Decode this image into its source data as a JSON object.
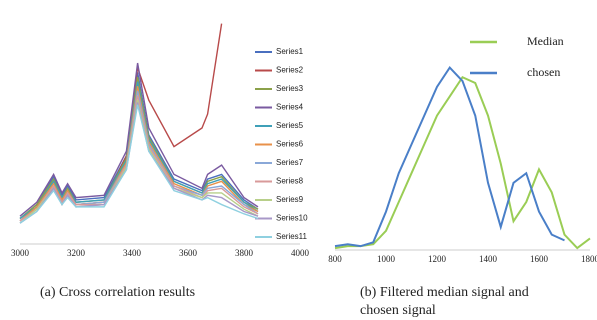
{
  "chart_data": [
    {
      "type": "line",
      "caption": "(a) Cross correlation results",
      "x": [
        3000,
        3060,
        3120,
        3150,
        3170,
        3200,
        3300,
        3380,
        3420,
        3460,
        3550,
        3650,
        3670,
        3720,
        3800,
        3850
      ],
      "xlim": [
        3000,
        4000
      ],
      "xticks": [
        3000,
        3200,
        3400,
        3600,
        3800,
        4000
      ],
      "ylim": [
        0,
        100
      ],
      "series": [
        {
          "name": "Series1",
          "color": "#4a6fbf",
          "values": [
            11,
            17,
            29,
            21,
            25,
            19,
            20,
            38,
            74,
            47,
            28,
            23,
            28,
            30,
            19,
            15
          ]
        },
        {
          "name": "Series2",
          "color": "#b84a4a",
          "values": [
            10,
            16,
            27,
            19,
            23,
            17,
            18,
            38,
            76,
            62,
            42,
            50,
            56,
            95,
            null,
            null
          ]
        },
        {
          "name": "Series3",
          "color": "#8ba14a",
          "values": [
            11,
            17,
            28,
            20,
            24,
            18,
            19,
            37,
            72,
            46,
            27,
            22,
            27,
            29,
            18,
            15
          ]
        },
        {
          "name": "Series4",
          "color": "#7a5aa0",
          "values": [
            12,
            18,
            30,
            22,
            26,
            20,
            21,
            40,
            78,
            50,
            30,
            24,
            30,
            34,
            20,
            16
          ]
        },
        {
          "name": "Series5",
          "color": "#3fa0b8",
          "values": [
            11,
            16,
            27,
            20,
            23,
            18,
            19,
            36,
            70,
            45,
            27,
            22,
            26,
            28,
            18,
            14
          ]
        },
        {
          "name": "Series6",
          "color": "#e8914a",
          "values": [
            10,
            16,
            26,
            19,
            23,
            17,
            18,
            35,
            68,
            44,
            26,
            21,
            25,
            27,
            17,
            14
          ]
        },
        {
          "name": "Series7",
          "color": "#8aa8d8",
          "values": [
            10,
            15,
            25,
            18,
            22,
            17,
            18,
            34,
            66,
            43,
            25,
            21,
            24,
            25,
            17,
            13
          ]
        },
        {
          "name": "Series8",
          "color": "#d89a9a",
          "values": [
            10,
            15,
            25,
            18,
            22,
            17,
            17,
            34,
            64,
            42,
            25,
            20,
            23,
            24,
            16,
            13
          ]
        },
        {
          "name": "Series9",
          "color": "#b8cf8a",
          "values": [
            9,
            15,
            24,
            17,
            21,
            16,
            17,
            33,
            62,
            41,
            24,
            20,
            22,
            22,
            15,
            12
          ]
        },
        {
          "name": "Series10",
          "color": "#a898c8",
          "values": [
            9,
            14,
            24,
            17,
            21,
            16,
            17,
            32,
            61,
            40,
            24,
            19,
            21,
            20,
            14,
            12
          ]
        },
        {
          "name": "Series11",
          "color": "#8fd0e0",
          "values": [
            9,
            14,
            23,
            17,
            20,
            16,
            16,
            32,
            60,
            40,
            23,
            19,
            20,
            17,
            13,
            11
          ]
        }
      ]
    },
    {
      "type": "line",
      "caption": [
        "(b) Filtered median signal and",
        "chosen signal"
      ],
      "x": [
        800,
        850,
        900,
        950,
        1000,
        1050,
        1100,
        1150,
        1200,
        1250,
        1300,
        1350,
        1400,
        1450,
        1500,
        1550,
        1600,
        1650,
        1700,
        1750,
        1800
      ],
      "xlim": [
        800,
        1800
      ],
      "xticks": [
        800,
        1000,
        1200,
        1400,
        1600,
        1800
      ],
      "ylim": [
        0,
        100
      ],
      "series": [
        {
          "name": "Median",
          "color": "#9acd55",
          "values": [
            1,
            2,
            2,
            3,
            10,
            25,
            40,
            55,
            70,
            80,
            90,
            87,
            70,
            45,
            15,
            25,
            42,
            30,
            8,
            1,
            6
          ]
        },
        {
          "name": "chosen",
          "color": "#4a7fc8",
          "values": [
            2,
            3,
            2,
            4,
            20,
            40,
            55,
            70,
            85,
            95,
            88,
            70,
            35,
            12,
            35,
            40,
            20,
            8,
            5,
            null,
            null
          ]
        }
      ]
    }
  ]
}
